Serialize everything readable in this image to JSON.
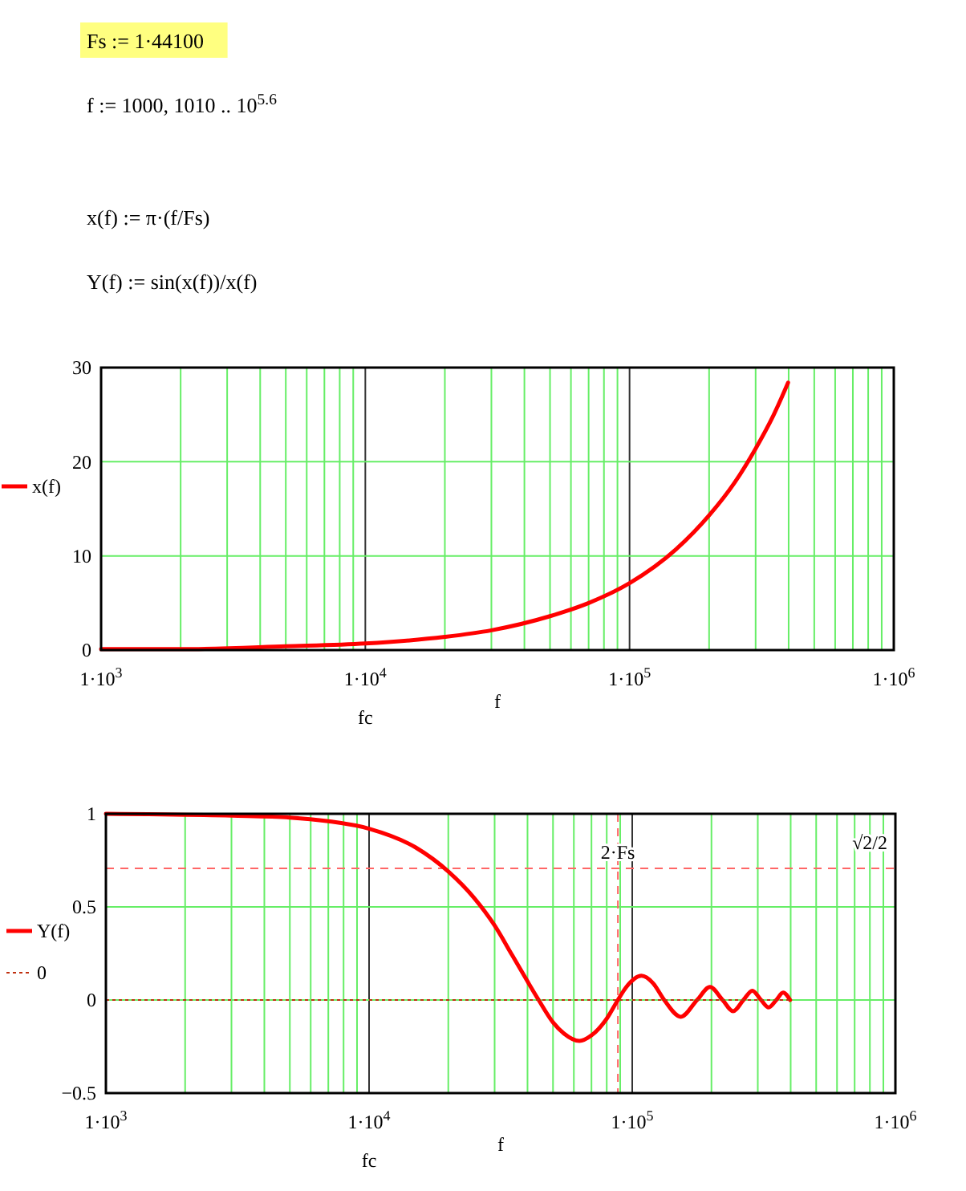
{
  "chart_data": [
    {
      "type": "line",
      "annotations": [
        "Fs := 1·44100",
        "f := 1000, 1010 .. 10$^{5.6}$",
        "x(f) := π·(f/Fs)",
        "Y(f) := sin(x(f))/x(f)",
        "fc"
      ],
      "xlabel": "f",
      "log": "x",
      "grid": true,
      "legend": "left",
      "xlim": [
        1000,
        1000000
      ],
      "xticks": [
        {
          "value": 1000,
          "label": "1·10$^{3}$"
        },
        {
          "value": 2000,
          "label": null
        },
        {
          "value": 3000,
          "label": null
        },
        {
          "value": 4000,
          "label": null
        },
        {
          "value": 5000,
          "label": null
        },
        {
          "value": 6000,
          "label": null
        },
        {
          "value": 7000,
          "label": null
        },
        {
          "value": 8000,
          "label": null
        },
        {
          "value": 9000,
          "label": null
        },
        {
          "value": 10000,
          "label": "1·10$^{4}$"
        },
        {
          "value": 20000,
          "label": null
        },
        {
          "value": 30000,
          "label": null
        },
        {
          "value": 40000,
          "label": null
        },
        {
          "value": 50000,
          "label": null
        },
        {
          "value": 60000,
          "label": null
        },
        {
          "value": 70000,
          "label": null
        },
        {
          "value": 80000,
          "label": null
        },
        {
          "value": 90000,
          "label": null
        },
        {
          "value": 100000,
          "label": "1·10$^{5}$"
        },
        {
          "value": 200000,
          "label": null
        },
        {
          "value": 300000,
          "label": null
        },
        {
          "value": 400000,
          "label": null
        },
        {
          "value": 500000,
          "label": null
        },
        {
          "value": 600000,
          "label": null
        },
        {
          "value": 700000,
          "label": null
        },
        {
          "value": 800000,
          "label": null
        },
        {
          "value": 900000,
          "label": null
        },
        {
          "value": 1000000,
          "label": "1·10$^{6}$"
        }
      ],
      "ylim": [
        0,
        30
      ],
      "yticks": [
        0,
        10,
        20,
        30
      ],
      "x": [
        1000,
        2000,
        5000,
        10000,
        20000,
        30000,
        50000,
        70000,
        100000,
        150000,
        200000,
        250000,
        300000,
        350000,
        398000
      ],
      "series": [
        {
          "name": "x(f)",
          "color": "#ff0000",
          "values": [
            0.1,
            0.1,
            0.4,
            0.7,
            1.4,
            2.1,
            3.6,
            5.0,
            7.1,
            10.7,
            14.3,
            17.8,
            21.4,
            24.9,
            28.4
          ]
        }
      ]
    },
    {
      "type": "line",
      "annotations": [
        "fc"
      ],
      "xlabel": "f",
      "log": "x",
      "grid": true,
      "legend": "left",
      "xlim": [
        1000,
        1000000
      ],
      "xticks": [
        {
          "value": 1000,
          "label": "1·10$^{3}$"
        },
        {
          "value": 2000,
          "label": null
        },
        {
          "value": 3000,
          "label": null
        },
        {
          "value": 4000,
          "label": null
        },
        {
          "value": 5000,
          "label": null
        },
        {
          "value": 6000,
          "label": null
        },
        {
          "value": 7000,
          "label": null
        },
        {
          "value": 8000,
          "label": null
        },
        {
          "value": 9000,
          "label": null
        },
        {
          "value": 10000,
          "label": "1·10$^{4}$"
        },
        {
          "value": 20000,
          "label": null
        },
        {
          "value": 30000,
          "label": null
        },
        {
          "value": 40000,
          "label": null
        },
        {
          "value": 50000,
          "label": null
        },
        {
          "value": 60000,
          "label": null
        },
        {
          "value": 70000,
          "label": null
        },
        {
          "value": 80000,
          "label": null
        },
        {
          "value": 90000,
          "label": null
        },
        {
          "value": 100000,
          "label": "1·10$^{5}$"
        },
        {
          "value": 200000,
          "label": null
        },
        {
          "value": 300000,
          "label": null
        },
        {
          "value": 400000,
          "label": null
        },
        {
          "value": 500000,
          "label": null
        },
        {
          "value": 600000,
          "label": null
        },
        {
          "value": 700000,
          "label": null
        },
        {
          "value": 800000,
          "label": null
        },
        {
          "value": 900000,
          "label": null
        },
        {
          "value": 1000000,
          "label": "1·10$^{6}$"
        }
      ],
      "ylim": [
        -0.5,
        1
      ],
      "yticks": [
        {
          "value": -0.5,
          "label": "−0.5"
        },
        0,
        0.5,
        1
      ],
      "ref_lines": [
        {
          "axis": "y",
          "value": 0.707,
          "label": "√2/2",
          "color": "#ff6666",
          "line_style": "dashed"
        },
        {
          "axis": "x",
          "value": 88200,
          "label": "2·Fs",
          "color": "#ff6666",
          "line_style": "dashed"
        }
      ],
      "x": [
        1000,
        3000,
        5000,
        7000,
        10000,
        15000,
        20000,
        25000,
        30000,
        35000,
        40000,
        44100,
        50000,
        55000,
        63000,
        70000,
        80000,
        88200,
        95000,
        108400,
        120000,
        132300,
        153000,
        176400,
        197500,
        220500,
        241700,
        264600,
        286000,
        308700,
        330000,
        352800,
        374400,
        398000
      ],
      "series": [
        {
          "name": "Y(f)",
          "color": "#ff0000",
          "values": [
            1.0,
            0.99,
            0.98,
            0.96,
            0.92,
            0.82,
            0.69,
            0.55,
            0.4,
            0.24,
            0.1,
            0,
            -0.12,
            -0.18,
            -0.22,
            -0.19,
            -0.1,
            0,
            0.07,
            0.13,
            0.09,
            0,
            -0.09,
            0,
            0.07,
            0,
            -0.06,
            0,
            0.05,
            0,
            -0.04,
            0,
            0.04,
            0
          ]
        },
        {
          "name": "0",
          "color": "#c03010",
          "line_style": "dotted",
          "x": [
            1000,
            398000
          ],
          "values": [
            0,
            0
          ]
        }
      ]
    }
  ]
}
